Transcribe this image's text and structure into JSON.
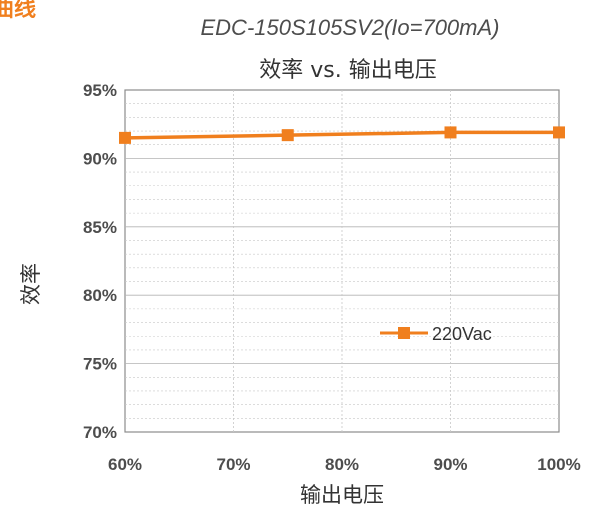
{
  "corner_fragment": "曲线",
  "chart_data": {
    "type": "line",
    "subtitle": "EDC-150S105SV2(Io=700mA)",
    "title": "效率 vs. 输出电压",
    "xlabel": "输出电压",
    "ylabel": "效率",
    "xlim": [
      60,
      100
    ],
    "ylim": [
      70,
      95
    ],
    "x_ticks": [
      "60%",
      "70%",
      "80%",
      "90%",
      "100%"
    ],
    "y_ticks": [
      "95%",
      "90%",
      "85%",
      "80%",
      "75%",
      "70%"
    ],
    "grid": true,
    "legend_position": "right",
    "series": [
      {
        "name": "220Vac",
        "color": "#f07f1e",
        "marker": "square",
        "x": [
          60,
          75,
          90,
          100
        ],
        "y": [
          91.5,
          91.7,
          91.9,
          91.9
        ]
      }
    ]
  }
}
